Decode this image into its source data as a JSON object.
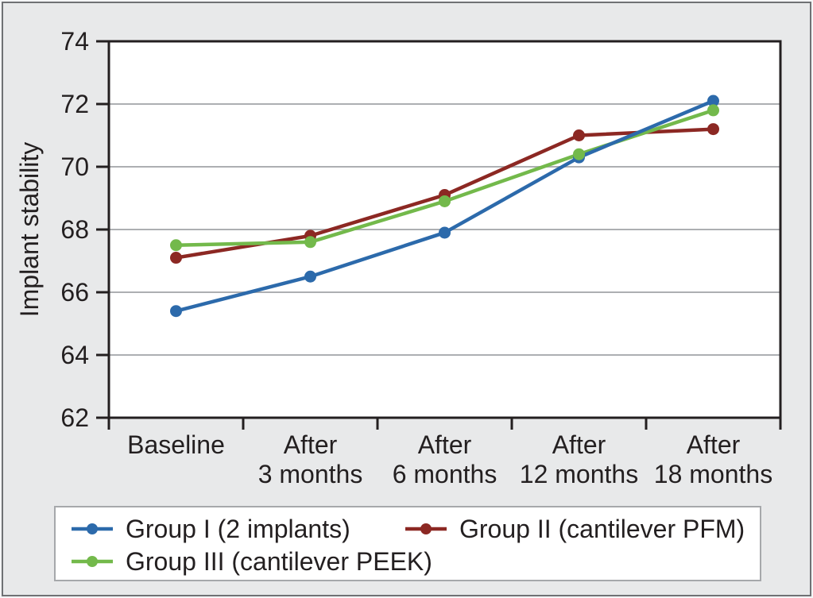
{
  "chart_data": {
    "type": "line",
    "title": "",
    "xlabel": "",
    "ylabel": "Implant stability",
    "categories": [
      "Baseline",
      "After 3 months",
      "After 6 months",
      "After 12 months",
      "After 18 months"
    ],
    "category_label_lines": [
      [
        "Baseline"
      ],
      [
        "After",
        "3 months"
      ],
      [
        "After",
        "6 months"
      ],
      [
        "After",
        "12 months"
      ],
      [
        "After",
        "18 months"
      ]
    ],
    "ylim": [
      62,
      74
    ],
    "yticks": [
      62,
      64,
      66,
      68,
      70,
      72,
      74
    ],
    "grid": true,
    "marker": "circle",
    "legend_position": "bottom",
    "series": [
      {
        "name": "Group I (2 implants)",
        "color": "#2c6aab",
        "values": [
          65.4,
          66.5,
          67.9,
          70.3,
          72.1
        ]
      },
      {
        "name": "Group II (cantilever PFM)",
        "color": "#8c2823",
        "values": [
          67.1,
          67.8,
          69.1,
          71.0,
          71.2
        ]
      },
      {
        "name": "Group III (cantilever PEEK)",
        "color": "#73b94b",
        "values": [
          67.5,
          67.6,
          68.9,
          70.4,
          71.8
        ]
      }
    ]
  },
  "colors": {
    "background": "#e8e9ea",
    "plot_bg": "#ffffff",
    "grid": "#adafb2",
    "axis": "#231f20",
    "text": "#231f20",
    "legend_border": "#a6a8ab",
    "frame_border": "#6f7174"
  }
}
